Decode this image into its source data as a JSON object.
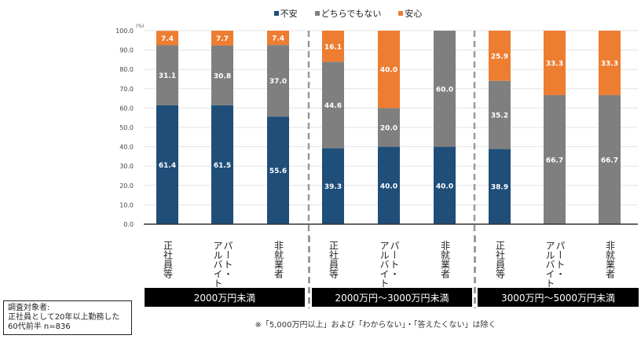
{
  "chart_data": {
    "type": "bar",
    "stacked": true,
    "title": "",
    "unit_label": "(%)",
    "ylim": [
      0,
      100
    ],
    "yticks": [
      "0.0",
      "10.0",
      "20.0",
      "30.0",
      "40.0",
      "50.0",
      "60.0",
      "70.0",
      "80.0",
      "90.0",
      "100.0"
    ],
    "grid": true,
    "legend_position": "top-center",
    "legend": [
      "不安",
      "どちらでもない",
      "安心"
    ],
    "colors": {
      "不安": "#1f4e79",
      "どちらでもない": "#7f7f7f",
      "安心": "#ed7d31"
    },
    "categories": [
      "正社員等",
      "パート・アルバイト",
      "非就業者",
      "正社員等",
      "パート・アルバイト",
      "非就業者",
      "正社員等",
      "パート・アルバイト",
      "非就業者"
    ],
    "category_lines": [
      [
        "正社員等"
      ],
      [
        "パート・",
        "アルバイト"
      ],
      [
        "非就業者"
      ],
      [
        "正社員等"
      ],
      [
        "パート・",
        "アルバイト"
      ],
      [
        "非就業者"
      ],
      [
        "正社員等"
      ],
      [
        "パート・",
        "アルバイト"
      ],
      [
        "非就業者"
      ]
    ],
    "groups": [
      "2000万円未満",
      "2000万円～3000万円未満",
      "3000万円～5000万円未満"
    ],
    "series": [
      {
        "name": "不安",
        "values": [
          61.4,
          61.5,
          55.6,
          39.3,
          40.0,
          40.0,
          38.9,
          0,
          0
        ]
      },
      {
        "name": "どちらでもない",
        "values": [
          31.1,
          30.8,
          37.0,
          44.6,
          20.0,
          60.0,
          35.2,
          66.7,
          66.7
        ]
      },
      {
        "name": "安心",
        "values": [
          7.4,
          7.7,
          7.4,
          16.1,
          40.0,
          0,
          25.9,
          33.3,
          33.3
        ]
      }
    ]
  },
  "respondent_note": [
    "調査対象者:",
    "正社員として20年以上勤務した",
    "60代前半 n=836"
  ],
  "footnote": "※「5,000万円以上」および「わからない」・「答えたくない」は除く"
}
